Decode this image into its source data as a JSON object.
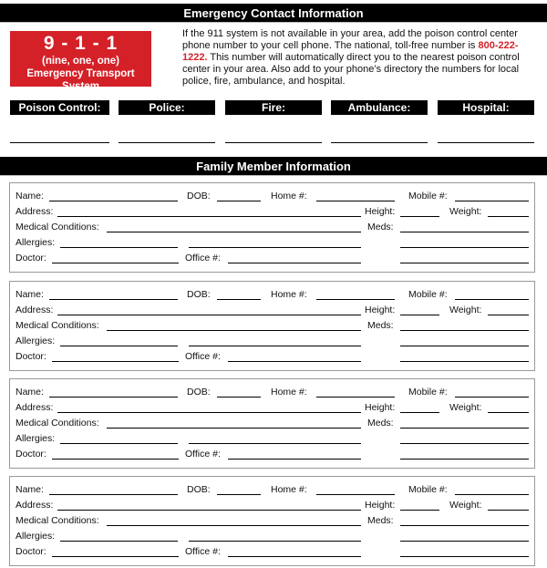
{
  "emergency": {
    "header": "Emergency Contact Information",
    "box": {
      "number": "9 - 1 - 1",
      "spoken": "(nine, one, one)",
      "system": "Emergency Transport System"
    },
    "intro_before": "If the 911 system is not available in your area, add the poison control center phone number to your cell phone. The national, toll-free number is ",
    "poison_number": "800-222-1222.",
    "intro_after": " This number will automatically direct you to the nearest poison control center in your area. Also add to your phone’s directory the numbers for local police, fire, ambulance, and hospital.",
    "contacts": [
      "Poison Control:",
      "Police:",
      "Fire:",
      "Ambulance:",
      "Hospital:"
    ],
    "accent_color": "#d42128"
  },
  "family": {
    "header": "Family Member Information",
    "members": [
      {
        "name": "Name:",
        "dob": "DOB:",
        "home": "Home #:",
        "mobile": "Mobile #:",
        "address": "Address:",
        "height": "Height:",
        "weight": "Weight:",
        "medical": "Medical Conditions:",
        "meds": "Meds:",
        "allergies": "Allergies:",
        "doctor": "Doctor:",
        "office": "Office #:"
      },
      {
        "name": "Name:",
        "dob": "DOB:",
        "home": "Home #:",
        "mobile": "Mobile #:",
        "address": "Address:",
        "height": "Height:",
        "weight": "Weight:",
        "medical": "Medical Conditions:",
        "meds": "Meds:",
        "allergies": "Allergies:",
        "doctor": "Doctor:",
        "office": "Office #:"
      },
      {
        "name": "Name:",
        "dob": "DOB:",
        "home": "Home #:",
        "mobile": "Mobile #:",
        "address": "Address:",
        "height": "Height:",
        "weight": "Weight:",
        "medical": "Medical Conditions:",
        "meds": "Meds:",
        "allergies": "Allergies:",
        "doctor": "Doctor:",
        "office": "Office #:"
      },
      {
        "name": "Name:",
        "dob": "DOB:",
        "home": "Home #:",
        "mobile": "Mobile #:",
        "address": "Address:",
        "height": "Height:",
        "weight": "Weight:",
        "medical": "Medical Conditions:",
        "meds": "Meds:",
        "allergies": "Allergies:",
        "doctor": "Doctor:",
        "office": "Office #:"
      }
    ]
  }
}
